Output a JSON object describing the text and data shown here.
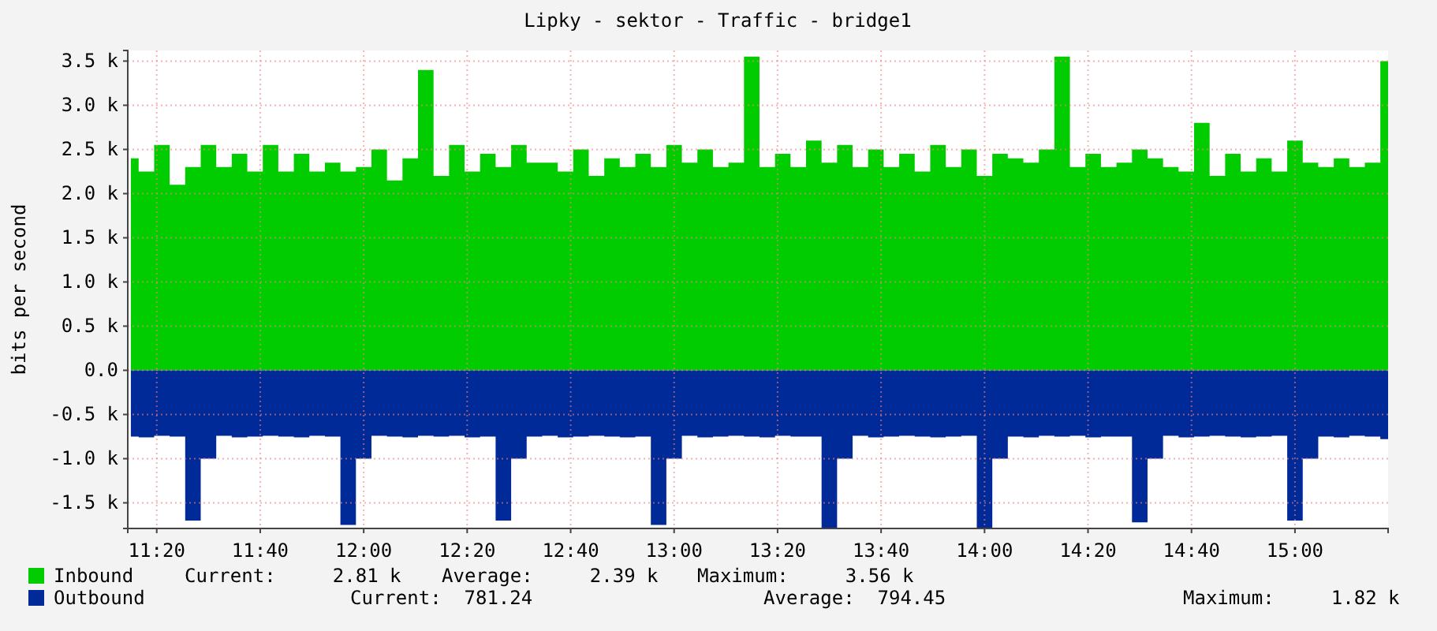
{
  "chart_data": {
    "type": "area",
    "title": "Lipky - sektor - Traffic - bridge1",
    "ylabel": "bits per second",
    "x": [
      11.25,
      11.3,
      11.35,
      11.4,
      11.45,
      11.5,
      11.55,
      11.6,
      11.65,
      11.7,
      11.75,
      11.8,
      11.85,
      11.9,
      11.95,
      12,
      12.05,
      12.1,
      12.15,
      12.2,
      12.25,
      12.3,
      12.35,
      12.4,
      12.45,
      12.5,
      12.55,
      12.6,
      12.65,
      12.7,
      12.75,
      12.8,
      12.85,
      12.9,
      12.95,
      13,
      13.05,
      13.1,
      13.15,
      13.2,
      13.25,
      13.3,
      13.35,
      13.4,
      13.45,
      13.5,
      13.55,
      13.6,
      13.65,
      13.7,
      13.75,
      13.8,
      13.85,
      13.9,
      13.95,
      14,
      14.05,
      14.1,
      14.15,
      14.2,
      14.25,
      14.3,
      14.35,
      14.4,
      14.45,
      14.5,
      14.55,
      14.6,
      14.65,
      14.7,
      14.75,
      14.8,
      14.85,
      14.9,
      14.95,
      15,
      15.05,
      15.1,
      15.15,
      15.2,
      15.25,
      15.3
    ],
    "series": [
      {
        "name": "Inbound",
        "color": "#00cc00",
        "values": [
          2400,
          2250,
          2550,
          2100,
          2300,
          2550,
          2300,
          2450,
          2250,
          2550,
          2250,
          2450,
          2250,
          2350,
          2250,
          2300,
          2500,
          2150,
          2400,
          3400,
          2200,
          2550,
          2250,
          2450,
          2300,
          2550,
          2350,
          2350,
          2250,
          2500,
          2200,
          2400,
          2300,
          2450,
          2300,
          2550,
          2350,
          2500,
          2300,
          2350,
          3550,
          2300,
          2450,
          2300,
          2600,
          2350,
          2550,
          2300,
          2500,
          2300,
          2450,
          2250,
          2550,
          2300,
          2500,
          2200,
          2450,
          2400,
          2350,
          2500,
          3550,
          2300,
          2450,
          2300,
          2350,
          2500,
          2400,
          2300,
          2250,
          2800,
          2200,
          2450,
          2250,
          2400,
          2250,
          2600,
          2350,
          2300,
          2400,
          2300,
          2350,
          3500
        ]
      },
      {
        "name": "Outbound",
        "color": "#002a97",
        "values": [
          -750,
          -760,
          -740,
          -750,
          -1700,
          -1000,
          -740,
          -760,
          -750,
          -740,
          -750,
          -760,
          -740,
          -750,
          -1750,
          -1000,
          -740,
          -750,
          -760,
          -740,
          -750,
          -740,
          -760,
          -750,
          -1700,
          -1000,
          -750,
          -740,
          -760,
          -750,
          -740,
          -750,
          -760,
          -750,
          -1750,
          -1000,
          -740,
          -760,
          -750,
          -740,
          -750,
          -760,
          -740,
          -750,
          -750,
          -1780,
          -1000,
          -740,
          -760,
          -750,
          -740,
          -750,
          -760,
          -750,
          -740,
          -1780,
          -1000,
          -750,
          -760,
          -740,
          -750,
          -740,
          -760,
          -750,
          -750,
          -1720,
          -1000,
          -740,
          -760,
          -750,
          -740,
          -750,
          -760,
          -750,
          -740,
          -1700,
          -1000,
          -750,
          -760,
          -740,
          -750,
          -780
        ]
      }
    ],
    "xlim": [
      11.24,
      15.3
    ],
    "xticks": [
      {
        "value": 11.3333,
        "label": "11:20"
      },
      {
        "value": 11.6667,
        "label": "11:40"
      },
      {
        "value": 12,
        "label": "12:00"
      },
      {
        "value": 12.3333,
        "label": "12:20"
      },
      {
        "value": 12.6667,
        "label": "12:40"
      },
      {
        "value": 13,
        "label": "13:00"
      },
      {
        "value": 13.3333,
        "label": "13:20"
      },
      {
        "value": 13.6667,
        "label": "13:40"
      },
      {
        "value": 14,
        "label": "14:00"
      },
      {
        "value": 14.3333,
        "label": "14:20"
      },
      {
        "value": 14.6667,
        "label": "14:40"
      },
      {
        "value": 15,
        "label": "15:00"
      }
    ],
    "ylim": [
      -1790,
      3620
    ],
    "yticks": [
      {
        "value": -1500,
        "label": "-1.5 k"
      },
      {
        "value": -1000,
        "label": "-1.0 k"
      },
      {
        "value": -500,
        "label": "-0.5 k"
      },
      {
        "value": 0,
        "label": "0.0"
      },
      {
        "value": 500,
        "label": "0.5 k"
      },
      {
        "value": 1000,
        "label": "1.0 k"
      },
      {
        "value": 1500,
        "label": "1.5 k"
      },
      {
        "value": 2000,
        "label": "2.0 k"
      },
      {
        "value": 2500,
        "label": "2.5 k"
      },
      {
        "value": 3000,
        "label": "3.0 k"
      },
      {
        "value": 3500,
        "label": "3.5 k"
      }
    ],
    "grid": true,
    "legend": "bottom",
    "annotations": [
      "Current:     2.81 k",
      "Average:     2.39 k",
      "Maximum:     3.56 k",
      "Current:  781.24",
      "Average:  794.45",
      "Maximum:     1.82 k"
    ]
  }
}
